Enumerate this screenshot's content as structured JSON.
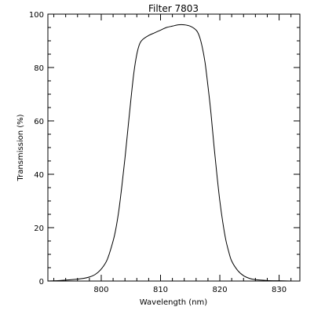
{
  "chart_data": {
    "type": "line",
    "title": "Filter 7803",
    "xlabel": "Wavelength (nm)",
    "ylabel": "Transmission (%)",
    "xlim": [
      791,
      833.5
    ],
    "ylim": [
      0,
      100
    ],
    "x_major_ticks": [
      800,
      810,
      820,
      830
    ],
    "x_minor_step": 2,
    "y_major_ticks": [
      0,
      20,
      40,
      60,
      80,
      100
    ],
    "y_minor_step": 5,
    "x_tick_labels": [
      "800",
      "810",
      "820",
      "830"
    ],
    "y_tick_labels": [
      "0",
      "20",
      "40",
      "60",
      "80",
      "100"
    ],
    "grid": false,
    "series": [
      {
        "x": [
          791,
          793,
          795,
          797,
          798,
          799,
          800,
          801,
          802,
          802.5,
          803,
          803.5,
          804,
          804.5,
          805,
          805.5,
          806,
          806.5,
          807,
          808,
          809,
          810,
          811,
          812,
          813,
          814,
          815,
          816,
          816.5,
          817,
          817.5,
          818,
          818.5,
          819,
          819.5,
          820,
          820.5,
          821,
          821.5,
          822,
          823,
          824,
          825,
          826,
          828,
          830,
          832,
          833.5
        ],
        "y": [
          0,
          0.2,
          0.5,
          1,
          1.5,
          2.5,
          4.5,
          8,
          15,
          20,
          27,
          36,
          46,
          57,
          68,
          78,
          85,
          89,
          90.5,
          92,
          93,
          94,
          95,
          95.5,
          96,
          96,
          95.5,
          94,
          92,
          88,
          82,
          73,
          63,
          51,
          40,
          30,
          22,
          15.5,
          11,
          7.5,
          4,
          2,
          1,
          0.5,
          0.2,
          0.1,
          0,
          0
        ]
      }
    ]
  }
}
